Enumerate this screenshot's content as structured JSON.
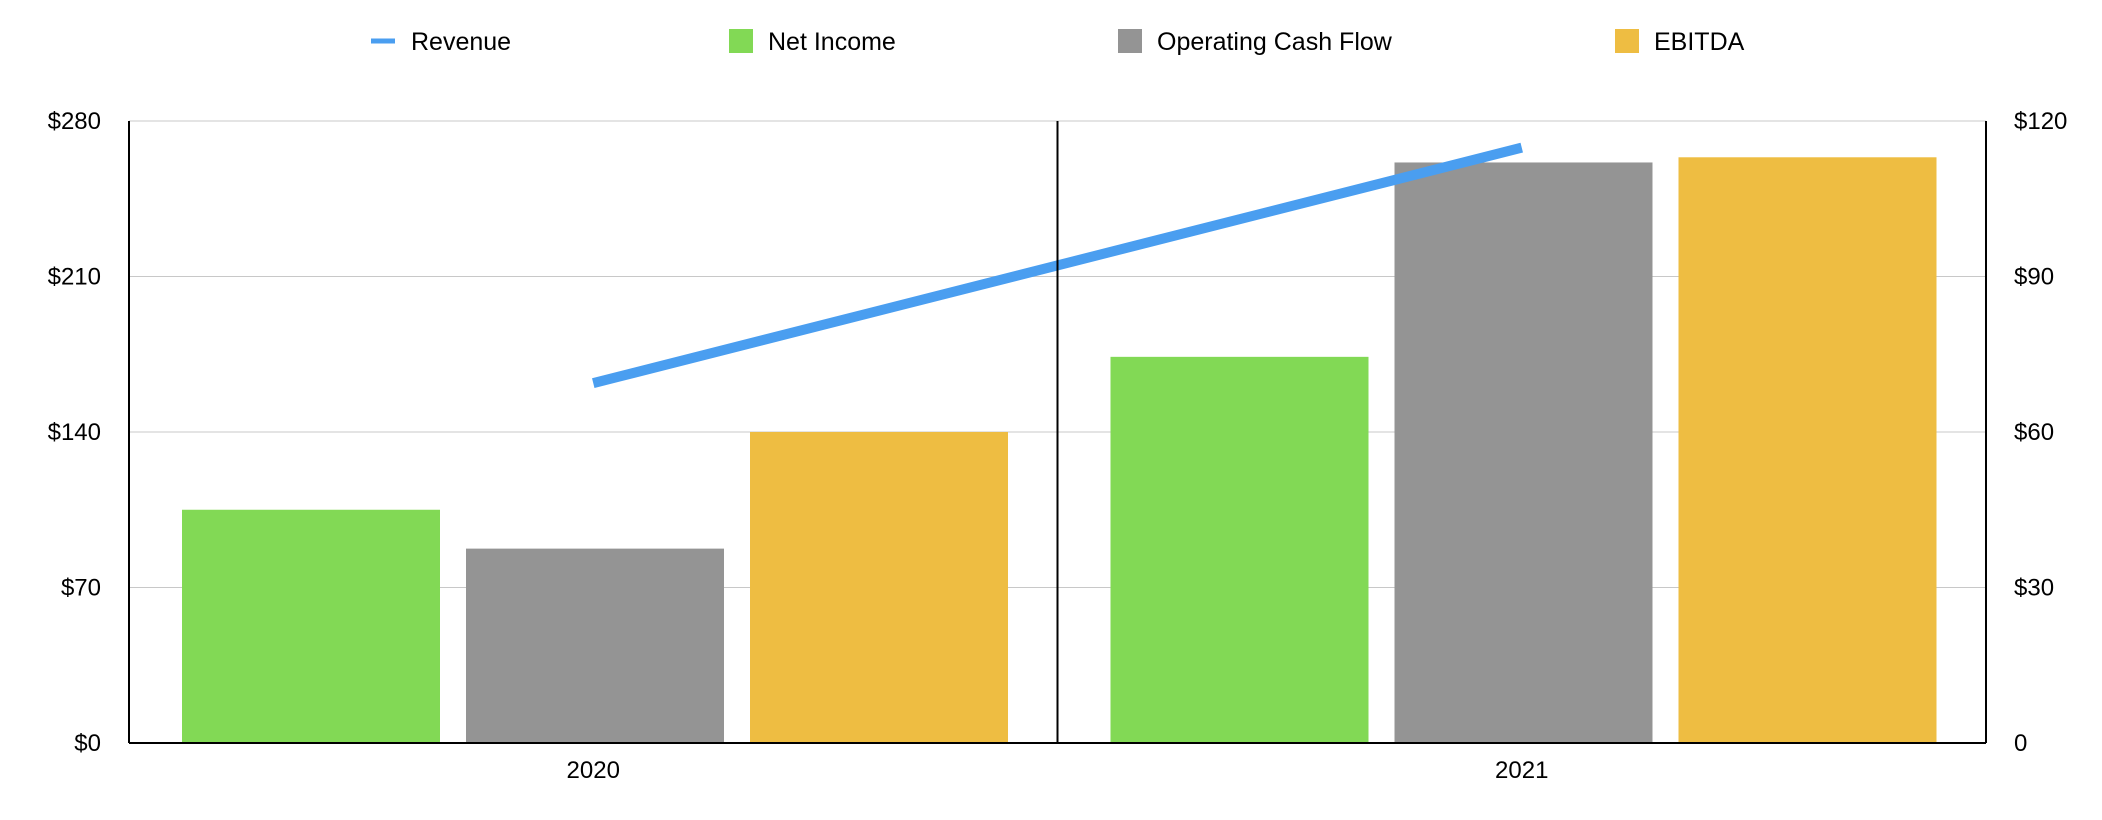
{
  "chart_data": {
    "type": "bar",
    "categories": [
      "2020",
      "2021"
    ],
    "series": [
      {
        "name": "Revenue",
        "type": "line",
        "axis": "left",
        "values": [
          162,
          268
        ],
        "color": "#4a9ef0"
      },
      {
        "name": "Net Income",
        "type": "bar",
        "axis": "right",
        "values": [
          45,
          74.5
        ],
        "color": "#82d955"
      },
      {
        "name": "Operating Cash Flow",
        "type": "bar",
        "axis": "right",
        "values": [
          37.5,
          112
        ],
        "color": "#949494"
      },
      {
        "name": "EBITDA",
        "type": "bar",
        "axis": "right",
        "values": [
          60,
          113
        ],
        "color": "#eebd42"
      }
    ],
    "y_left": {
      "ylim": [
        0,
        280
      ],
      "ticks": [
        0,
        70,
        140,
        210,
        280
      ],
      "tick_labels": [
        "$0",
        "$70",
        "$140",
        "$210",
        "$280"
      ]
    },
    "y_right": {
      "ylim": [
        0,
        120
      ],
      "ticks": [
        0,
        30,
        60,
        90,
        120
      ],
      "tick_labels": [
        "0",
        "$30",
        "$60",
        "$90",
        "$120"
      ]
    },
    "title": "",
    "xlabel": "",
    "ylabel": "",
    "grid": true,
    "legend": "top-center"
  }
}
